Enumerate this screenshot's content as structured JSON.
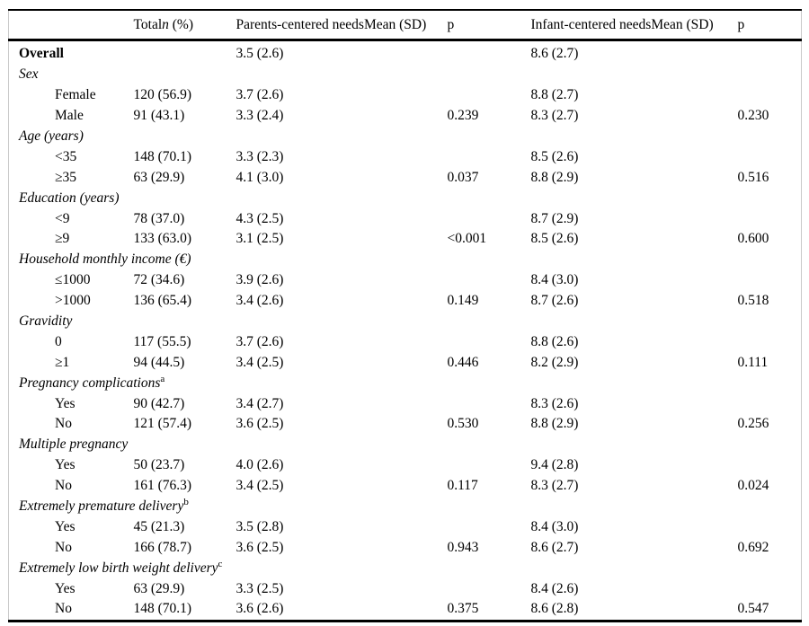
{
  "table": {
    "header": {
      "label": "",
      "total_pre": "Total",
      "total_n": "n",
      "total_post": " (%)",
      "parents": "Parents-centered needsMean (SD)",
      "p1": "p",
      "infant": "Infant-centered needsMean (SD)",
      "p2": "p"
    },
    "rows": [
      {
        "type": "overall",
        "label": "Overall",
        "total": "",
        "parents": "3.5 (2.6)",
        "p1": "",
        "infant": "8.6 (2.7)",
        "p2": ""
      },
      {
        "type": "group",
        "label": "Sex",
        "sup": ""
      },
      {
        "type": "sub",
        "label": "Female",
        "total": "120 (56.9)",
        "parents": "3.7 (2.6)",
        "p1": "",
        "infant": "8.8 (2.7)",
        "p2": ""
      },
      {
        "type": "sub",
        "label": "Male",
        "total": "91 (43.1)",
        "parents": "3.3 (2.4)",
        "p1": "0.239",
        "infant": "8.3 (2.7)",
        "p2": "0.230"
      },
      {
        "type": "group",
        "label": "Age (years)",
        "sup": ""
      },
      {
        "type": "sub",
        "label": "<35",
        "total": "148 (70.1)",
        "parents": "3.3 (2.3)",
        "p1": "",
        "infant": "8.5 (2.6)",
        "p2": ""
      },
      {
        "type": "sub",
        "label": "≥35",
        "total": "63 (29.9)",
        "parents": "4.1 (3.0)",
        "p1": "0.037",
        "infant": "8.8 (2.9)",
        "p2": "0.516"
      },
      {
        "type": "group",
        "label": "Education (years)",
        "sup": ""
      },
      {
        "type": "sub",
        "label": "<9",
        "total": "78 (37.0)",
        "parents": "4.3 (2.5)",
        "p1": "",
        "infant": "8.7 (2.9)",
        "p2": ""
      },
      {
        "type": "sub",
        "label": "≥9",
        "total": "133 (63.0)",
        "parents": "3.1 (2.5)",
        "p1": "<0.001",
        "infant": "8.5 (2.6)",
        "p2": "0.600"
      },
      {
        "type": "group",
        "label": "Household monthly income (€)",
        "sup": ""
      },
      {
        "type": "sub",
        "label": "≤1000",
        "total": "72 (34.6)",
        "parents": "3.9 (2.6)",
        "p1": "",
        "infant": "8.4 (3.0)",
        "p2": ""
      },
      {
        "type": "sub",
        "label": ">1000",
        "total": "136 (65.4)",
        "parents": "3.4 (2.6)",
        "p1": "0.149",
        "infant": "8.7 (2.6)",
        "p2": "0.518"
      },
      {
        "type": "group",
        "label": "Gravidity",
        "sup": ""
      },
      {
        "type": "sub",
        "label": "0",
        "total": "117 (55.5)",
        "parents": "3.7 (2.6)",
        "p1": "",
        "infant": "8.8 (2.6)",
        "p2": ""
      },
      {
        "type": "sub",
        "label": "≥1",
        "total": "94 (44.5)",
        "parents": "3.4 (2.5)",
        "p1": "0.446",
        "infant": "8.2 (2.9)",
        "p2": "0.111"
      },
      {
        "type": "group",
        "label": "Pregnancy complications",
        "sup": "a"
      },
      {
        "type": "sub",
        "label": "Yes",
        "total": "90 (42.7)",
        "parents": "3.4 (2.7)",
        "p1": "",
        "infant": "8.3 (2.6)",
        "p2": ""
      },
      {
        "type": "sub",
        "label": "No",
        "total": "121 (57.4)",
        "parents": "3.6 (2.5)",
        "p1": "0.530",
        "infant": "8.8 (2.9)",
        "p2": "0.256"
      },
      {
        "type": "group",
        "label": "Multiple pregnancy",
        "sup": ""
      },
      {
        "type": "sub",
        "label": "Yes",
        "total": "50 (23.7)",
        "parents": "4.0 (2.6)",
        "p1": "",
        "infant": "9.4 (2.8)",
        "p2": ""
      },
      {
        "type": "sub",
        "label": "No",
        "total": "161 (76.3)",
        "parents": "3.4 (2.5)",
        "p1": "0.117",
        "infant": "8.3 (2.7)",
        "p2": "0.024"
      },
      {
        "type": "group",
        "label": "Extremely premature delivery",
        "sup": "b"
      },
      {
        "type": "sub",
        "label": "Yes",
        "total": "45 (21.3)",
        "parents": "3.5 (2.8)",
        "p1": "",
        "infant": "8.4 (3.0)",
        "p2": ""
      },
      {
        "type": "sub",
        "label": "No",
        "total": "166 (78.7)",
        "parents": "3.6 (2.5)",
        "p1": "0.943",
        "infant": "8.6 (2.7)",
        "p2": "0.692"
      },
      {
        "type": "group",
        "label": "Extremely low birth weight delivery",
        "sup": "c"
      },
      {
        "type": "sub",
        "label": "Yes",
        "total": "63 (29.9)",
        "parents": "3.3 (2.5)",
        "p1": "",
        "infant": "8.4 (2.6)",
        "p2": ""
      },
      {
        "type": "sub",
        "label": "No",
        "total": "148 (70.1)",
        "parents": "3.6 (2.6)",
        "p1": "0.375",
        "infant": "8.6 (2.8)",
        "p2": "0.547"
      }
    ]
  }
}
